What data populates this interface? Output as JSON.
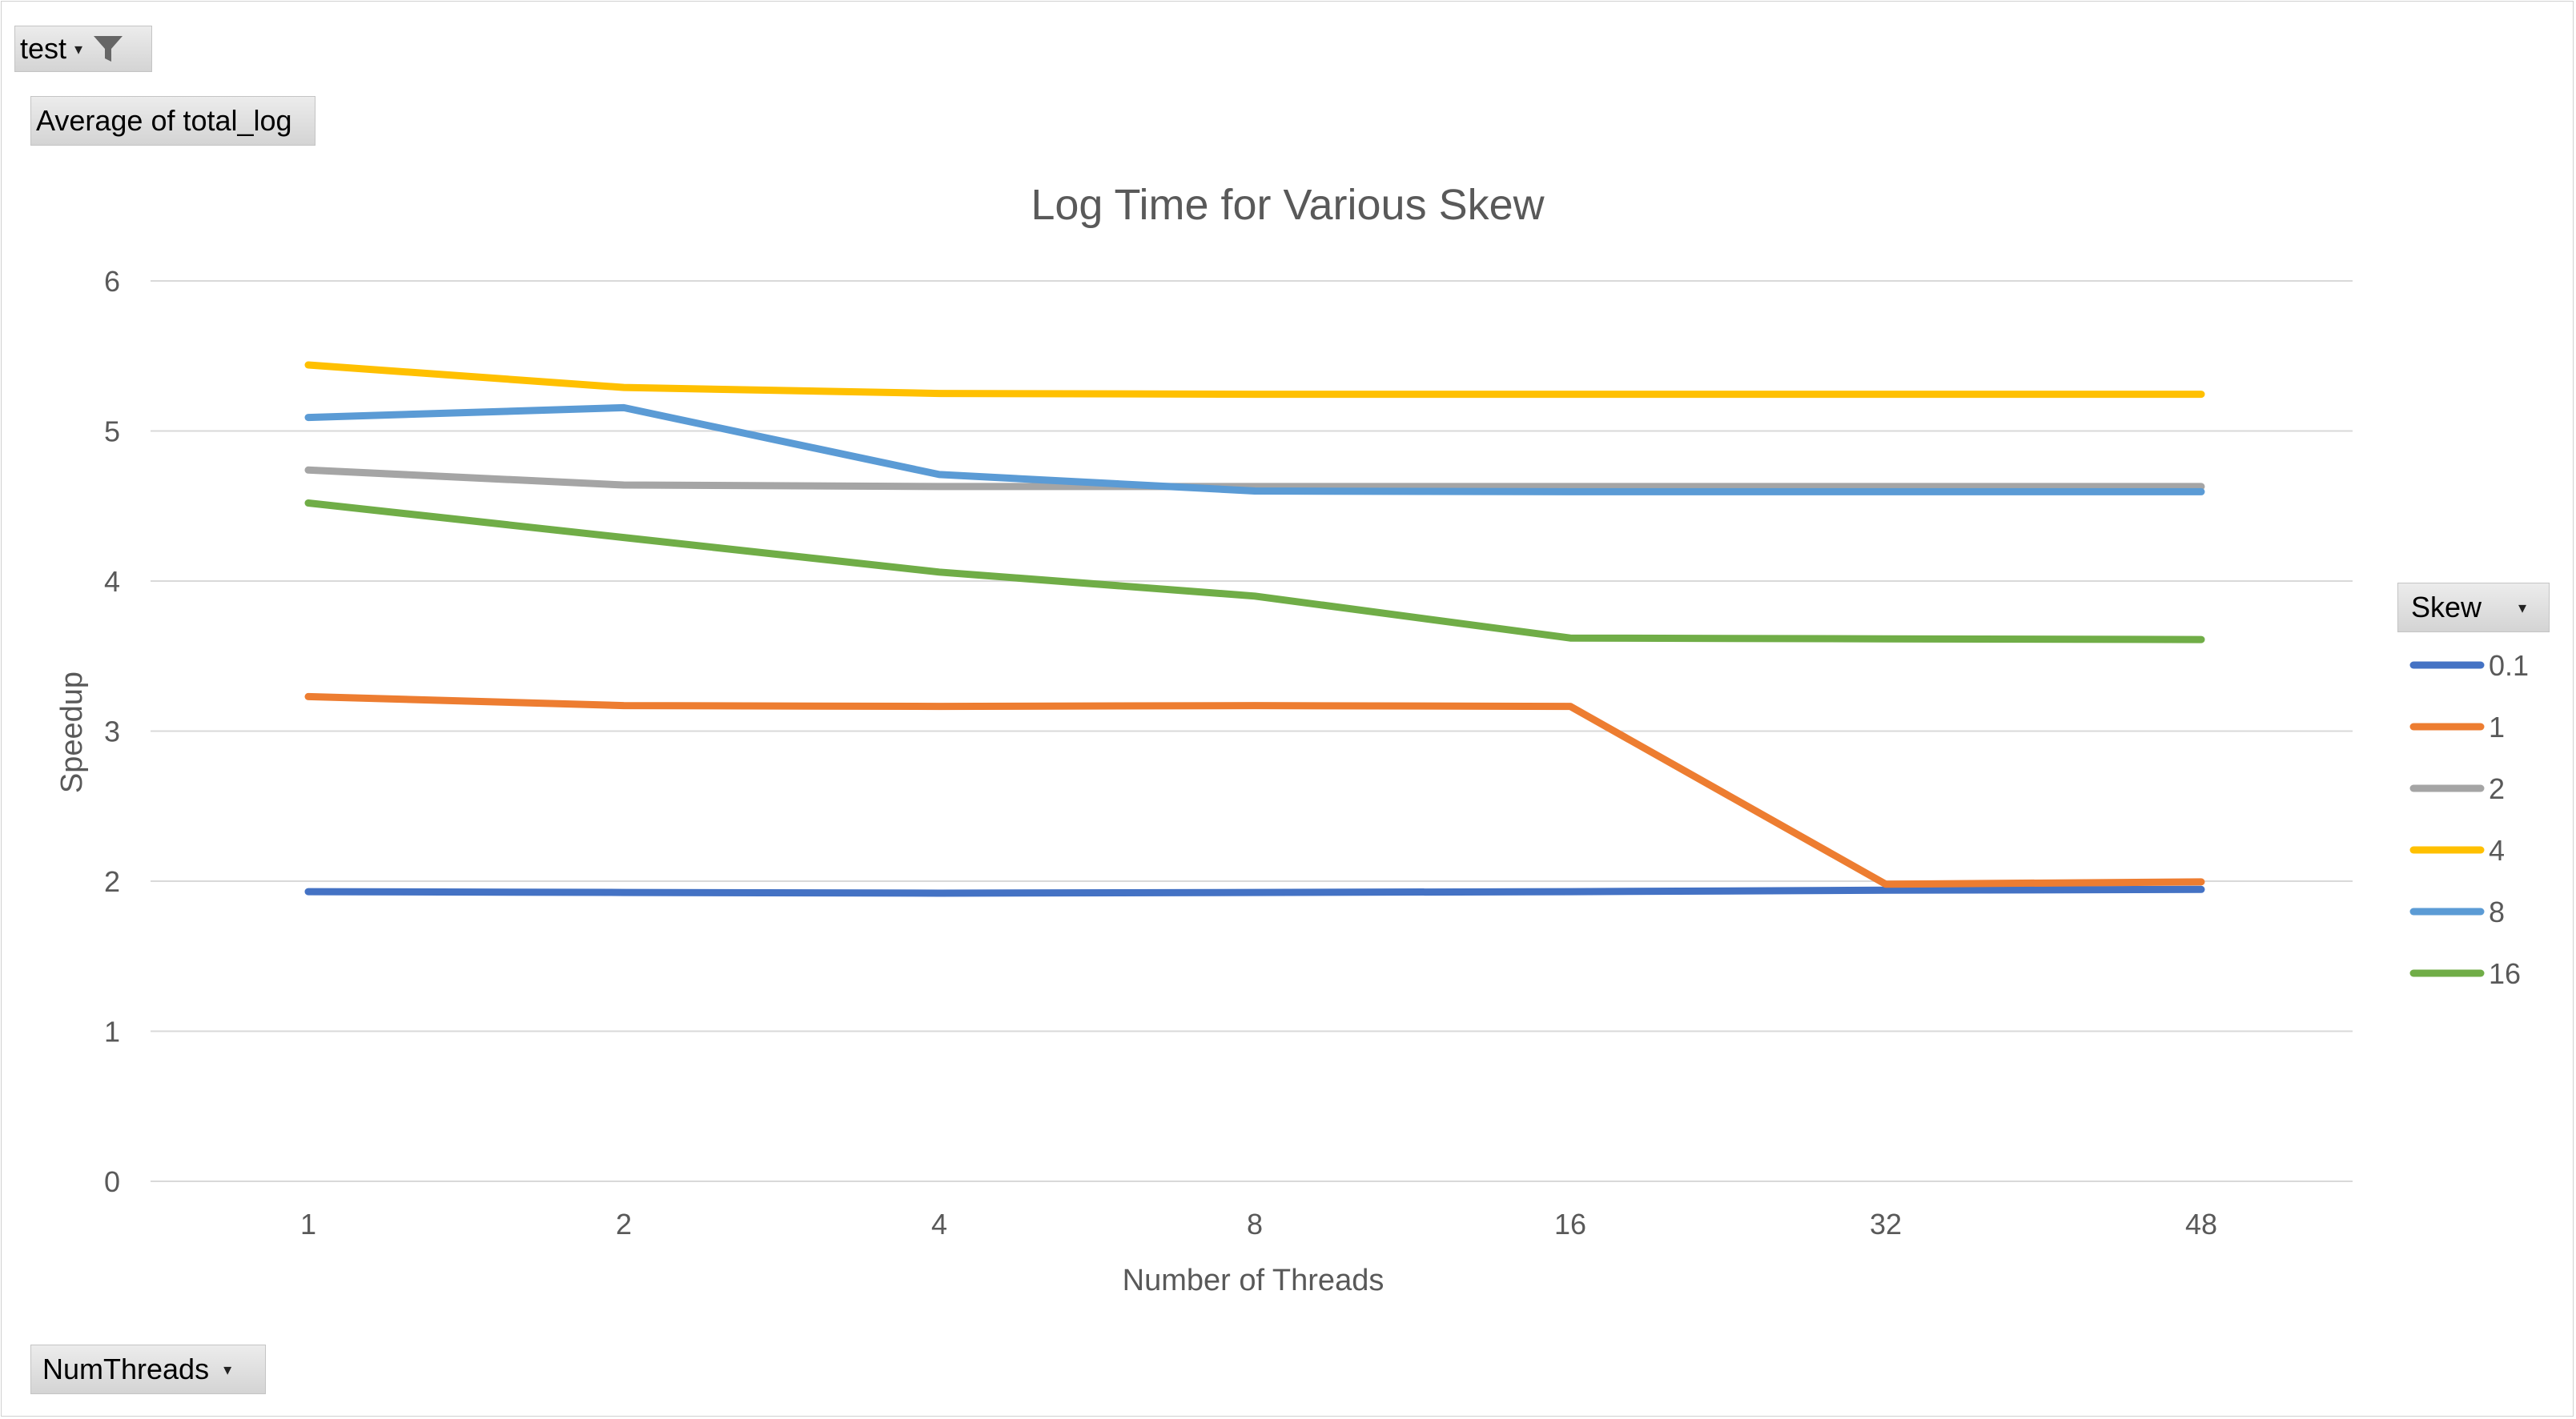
{
  "filters": {
    "report_filter": {
      "label": "test",
      "icon": "filter-icon"
    },
    "values_field": {
      "label": "Average of total_log"
    },
    "axis_field": {
      "label": "NumThreads"
    },
    "legend_field": {
      "label": "Skew"
    }
  },
  "chart_data": {
    "type": "line",
    "title": "Log Time for Various Skew",
    "xlabel": "Number of Threads",
    "ylabel": "Speedup",
    "categories": [
      "1",
      "2",
      "4",
      "8",
      "16",
      "32",
      "48"
    ],
    "ylim": [
      0,
      6
    ],
    "yticks": [
      0,
      1,
      2,
      3,
      4,
      5,
      6
    ],
    "grid": true,
    "legend_position": "right",
    "series": [
      {
        "name": "0.1",
        "color": "#4472C4",
        "values": [
          1.93,
          1.925,
          1.92,
          1.925,
          1.93,
          1.94,
          1.945
        ]
      },
      {
        "name": "1",
        "color": "#ED7D31",
        "values": [
          3.23,
          3.17,
          3.165,
          3.17,
          3.165,
          1.98,
          1.995
        ]
      },
      {
        "name": "2",
        "color": "#A5A5A5",
        "values": [
          4.74,
          4.64,
          4.63,
          4.63,
          4.63,
          4.63,
          4.63
        ]
      },
      {
        "name": "4",
        "color": "#FFC000",
        "values": [
          5.44,
          5.29,
          5.25,
          5.245,
          5.245,
          5.245,
          5.245
        ]
      },
      {
        "name": "8",
        "color": "#5B9BD5",
        "values": [
          5.09,
          5.155,
          4.71,
          4.6,
          4.595,
          4.595,
          4.595
        ]
      },
      {
        "name": "16",
        "color": "#70AD47",
        "values": [
          4.52,
          4.29,
          4.06,
          3.9,
          3.62,
          3.615,
          3.61
        ]
      }
    ]
  }
}
